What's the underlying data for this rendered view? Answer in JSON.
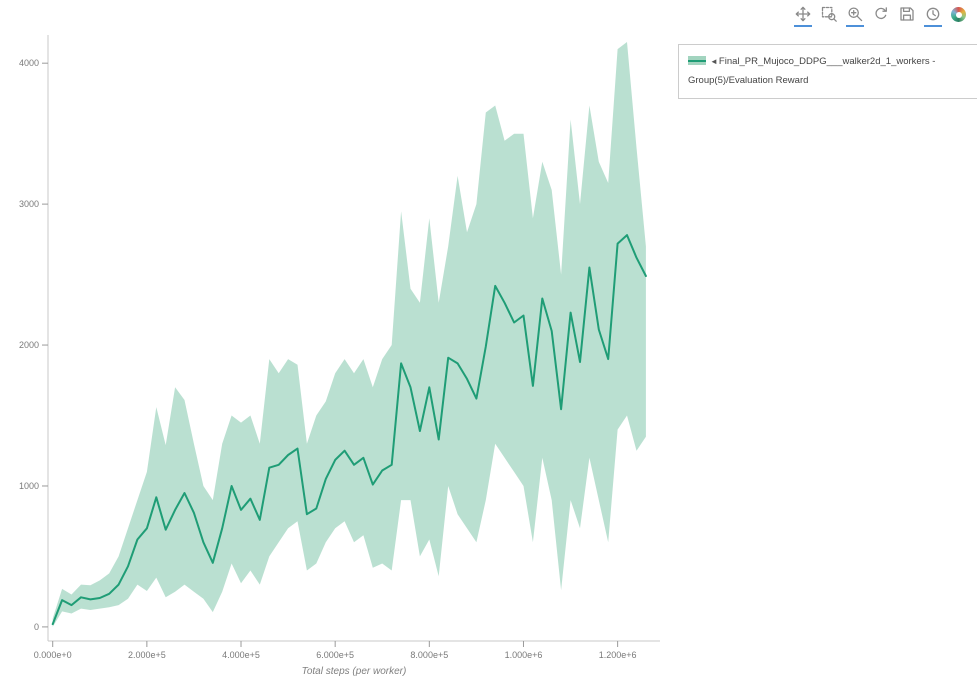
{
  "toolbar": {
    "tools": [
      {
        "name": "pan",
        "active": true
      },
      {
        "name": "box-zoom",
        "active": false
      },
      {
        "name": "wheel-zoom",
        "active": true
      },
      {
        "name": "reset",
        "active": false
      },
      {
        "name": "save",
        "active": false
      },
      {
        "name": "hover",
        "active": true
      },
      {
        "name": "bokeh-logo",
        "active": false
      }
    ]
  },
  "legend": {
    "collapse_marker": "◄",
    "label": "Final_PR_Mujoco_DDPG___walker2d_1_workers - Group(5)/Evaluation Reward"
  },
  "chart_data": {
    "type": "line",
    "title": "",
    "xlabel": "Total steps (per worker)",
    "ylabel": "",
    "grid": false,
    "legend_position": "top-right-outside",
    "xlim": [
      -10000,
      1290000
    ],
    "ylim": [
      -100,
      4200
    ],
    "xtick_values": [
      0,
      200000,
      400000,
      600000,
      800000,
      1000000,
      1200000
    ],
    "xtick_labels": [
      "0.000e+0",
      "2.000e+5",
      "4.000e+5",
      "6.000e+5",
      "8.000e+5",
      "1.000e+6",
      "1.200e+6"
    ],
    "ytick_values": [
      0,
      1000,
      2000,
      3000,
      4000
    ],
    "ytick_labels": [
      "0",
      "1000",
      "2000",
      "3000",
      "4000"
    ],
    "line_color": "#1f9d76",
    "band_color": "#82c6ab",
    "band_opacity": 0.55,
    "series": [
      {
        "name": "Final_PR_Mujoco_DDPG___walker2d_1_workers - Group(5)/Evaluation Reward",
        "x": [
          0,
          20000,
          40000,
          60000,
          80000,
          100000,
          120000,
          140000,
          160000,
          180000,
          200000,
          220000,
          240000,
          260000,
          280000,
          300000,
          320000,
          340000,
          360000,
          380000,
          400000,
          420000,
          440000,
          460000,
          480000,
          500000,
          520000,
          540000,
          560000,
          580000,
          600000,
          620000,
          640000,
          660000,
          680000,
          700000,
          720000,
          740000,
          760000,
          780000,
          800000,
          820000,
          840000,
          860000,
          880000,
          900000,
          920000,
          940000,
          960000,
          980000,
          1000000,
          1020000,
          1040000,
          1060000,
          1080000,
          1100000,
          1120000,
          1140000,
          1160000,
          1180000,
          1200000,
          1220000,
          1240000,
          1260000
        ],
        "mean": [
          20,
          190,
          155,
          210,
          195,
          205,
          235,
          300,
          430,
          620,
          700,
          920,
          690,
          830,
          950,
          810,
          600,
          455,
          700,
          1000,
          830,
          910,
          760,
          1130,
          1150,
          1220,
          1265,
          800,
          840,
          1050,
          1185,
          1250,
          1150,
          1200,
          1010,
          1110,
          1150,
          1870,
          1700,
          1390,
          1700,
          1330,
          1910,
          1870,
          1760,
          1620,
          1990,
          2420,
          2300,
          2160,
          2210,
          1710,
          2330,
          2100,
          1545,
          2230,
          1880,
          2550,
          2110,
          1900,
          2720,
          2780,
          2620,
          2490
        ],
        "band_upper": [
          60,
          270,
          230,
          300,
          295,
          330,
          380,
          500,
          700,
          900,
          1100,
          1560,
          1290,
          1700,
          1610,
          1300,
          1000,
          900,
          1300,
          1500,
          1450,
          1500,
          1300,
          1900,
          1800,
          1900,
          1860,
          1300,
          1500,
          1600,
          1800,
          1900,
          1800,
          1900,
          1700,
          1900,
          2000,
          2950,
          2400,
          2300,
          2900,
          2300,
          2700,
          3200,
          2800,
          3000,
          3650,
          3700,
          3450,
          3500,
          3500,
          2900,
          3300,
          3100,
          2500,
          3600,
          3000,
          3700,
          3300,
          3150,
          4100,
          4150,
          3400,
          2700
        ],
        "band_lower": [
          0,
          110,
          95,
          130,
          120,
          130,
          140,
          155,
          200,
          300,
          255,
          350,
          210,
          250,
          300,
          250,
          200,
          105,
          250,
          450,
          310,
          400,
          300,
          500,
          600,
          700,
          750,
          400,
          450,
          600,
          700,
          750,
          600,
          650,
          420,
          450,
          400,
          900,
          900,
          500,
          620,
          360,
          1000,
          800,
          700,
          600,
          900,
          1300,
          1200,
          1100,
          1000,
          600,
          1200,
          900,
          260,
          900,
          700,
          1200,
          900,
          600,
          1400,
          1500,
          1250,
          1350
        ]
      }
    ]
  }
}
